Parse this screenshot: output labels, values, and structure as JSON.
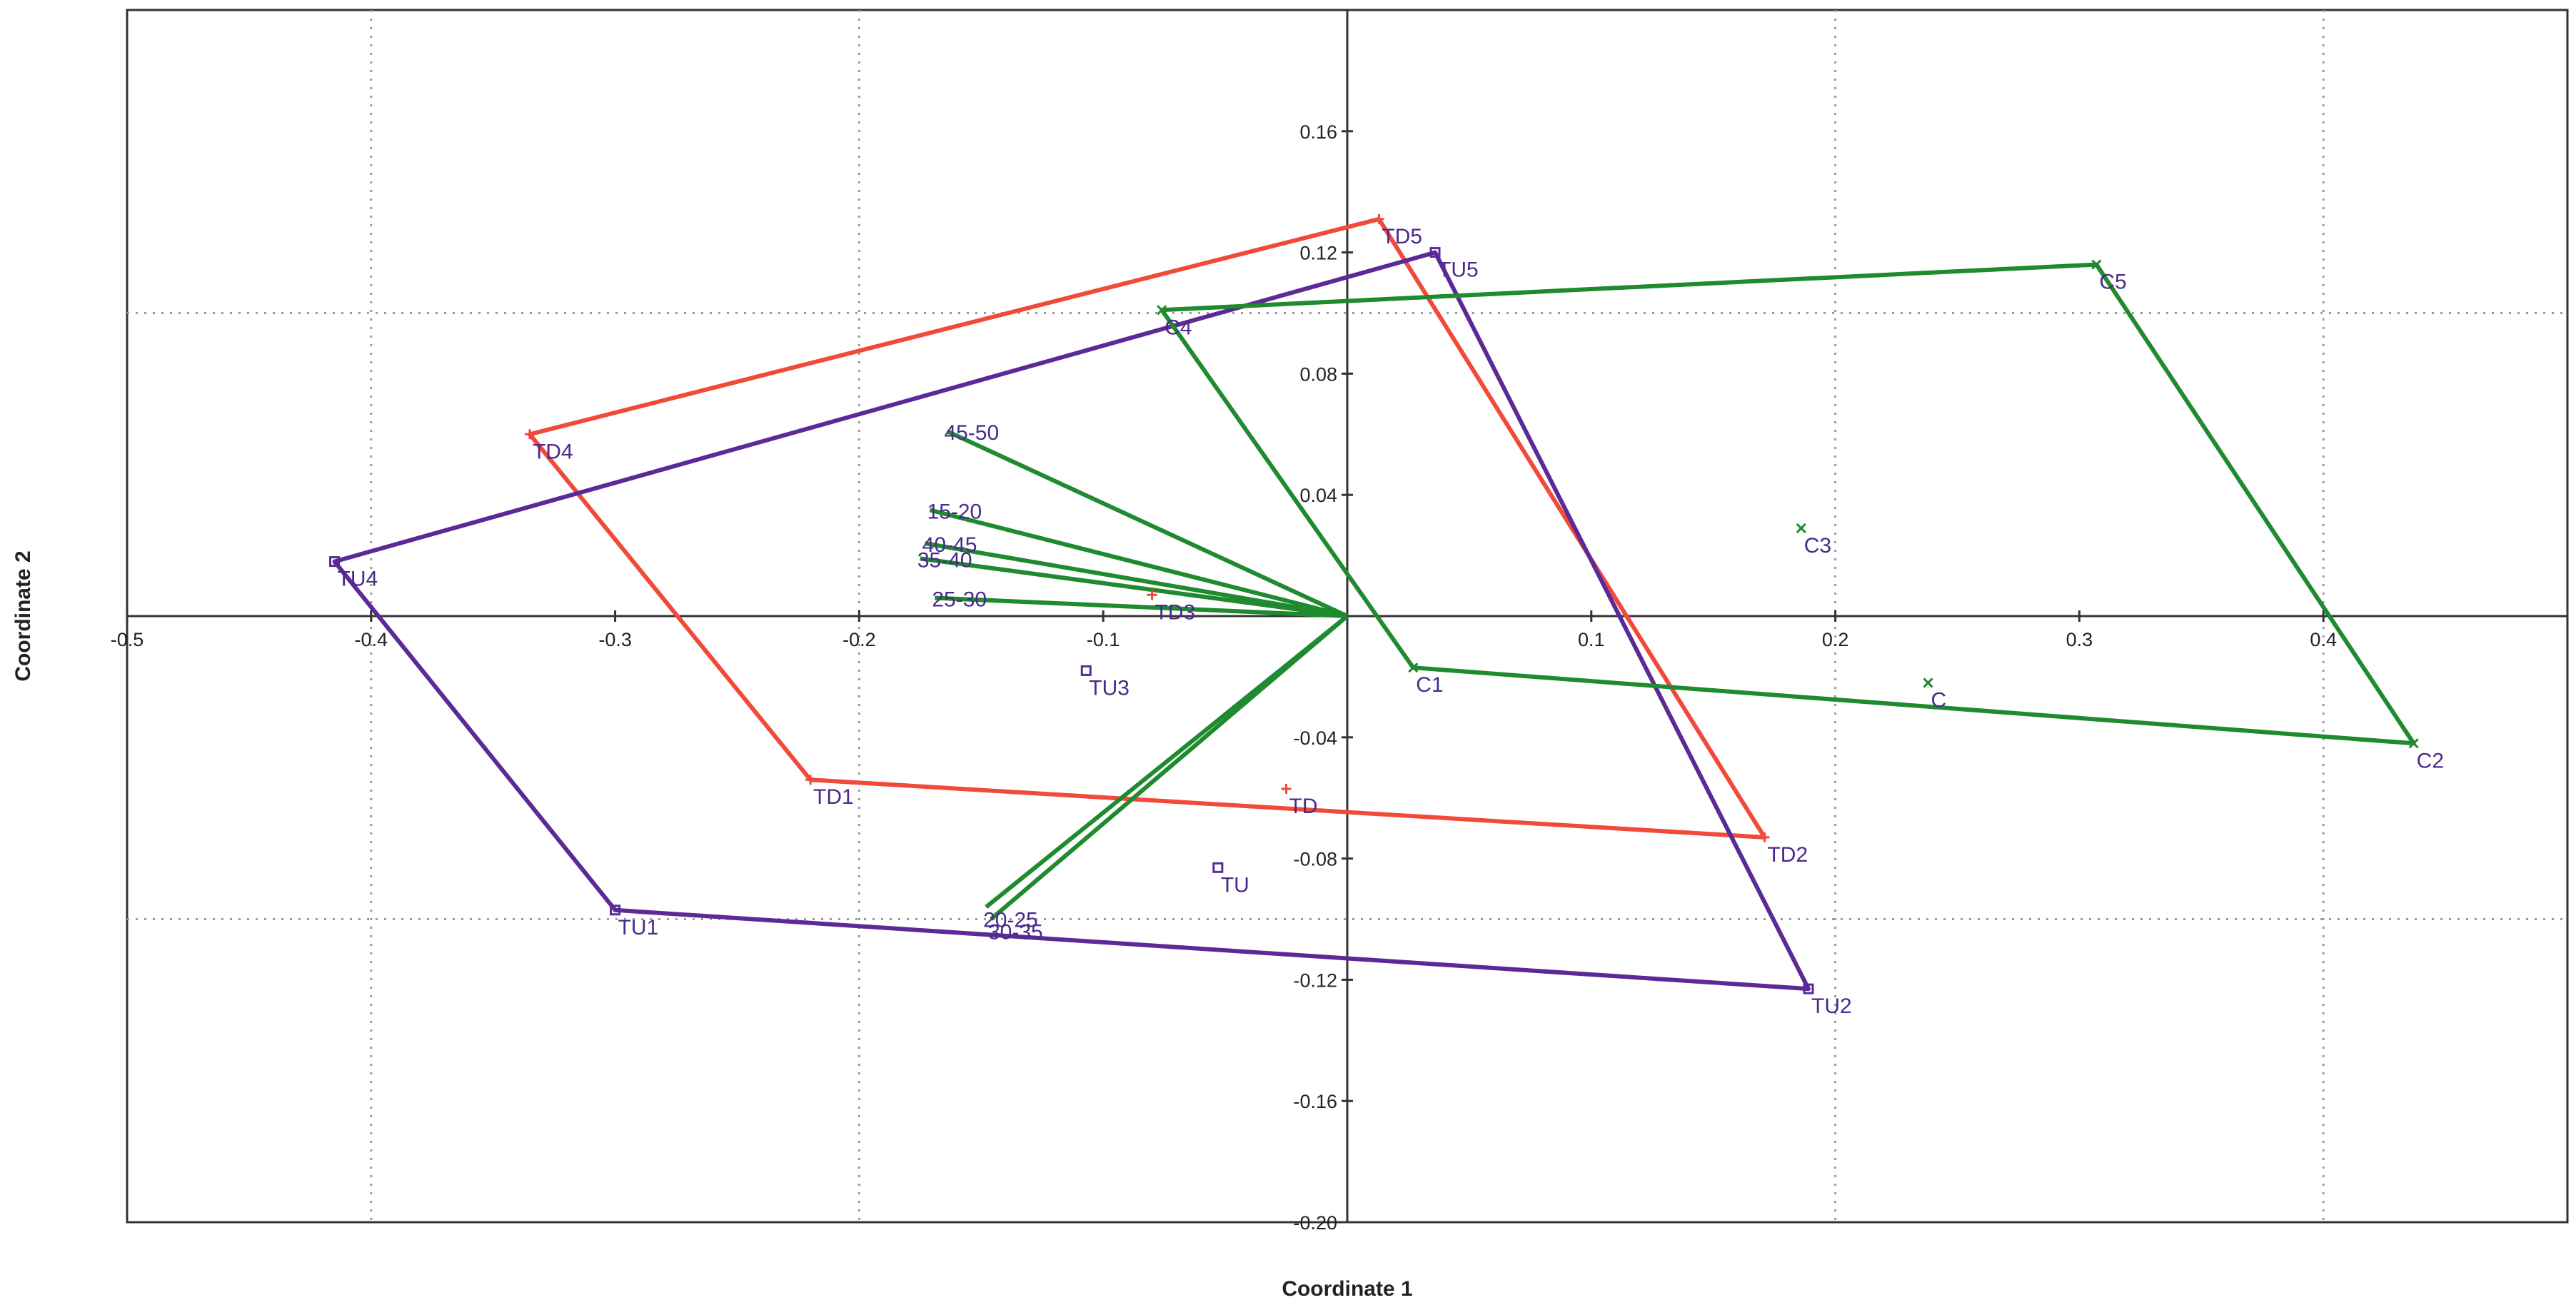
{
  "colors": {
    "red": "#f24a3a",
    "purple": "#5b2a96",
    "green": "#1f8a2e",
    "label": "#4a2a8a",
    "grid": "#9a9a9a",
    "axis": "#333333"
  },
  "chart_data": {
    "type": "scatter",
    "title": "",
    "xlabel": "Coordinate 1",
    "ylabel": "Coordinate 2",
    "xlim": [
      -0.5,
      0.5
    ],
    "ylim": [
      -0.2,
      0.2
    ],
    "x_ticks": [
      -0.5,
      -0.4,
      -0.3,
      -0.2,
      -0.1,
      0.1,
      0.2,
      0.3,
      0.4
    ],
    "x_tick_labels": [
      "-0.5",
      "-0.4",
      "-0.3",
      "-0.2",
      "-0.1",
      "0.1",
      "0.2",
      "0.3",
      "0.4"
    ],
    "y_ticks": [
      -0.2,
      -0.16,
      -0.12,
      -0.08,
      -0.04,
      0.04,
      0.08,
      0.12,
      0.16
    ],
    "y_tick_labels": [
      "-0.20",
      "-0.16",
      "-0.12",
      "-0.08",
      "-0.04",
      "0.04",
      "0.08",
      "0.12",
      "0.16"
    ],
    "grid_x": [
      -0.4,
      -0.2,
      0.2,
      0.4
    ],
    "grid_y": [
      -0.1,
      0.1
    ],
    "hulls": [
      {
        "color": "red",
        "vertices": [
          "TD4",
          "TD5",
          "TD2",
          "TD1"
        ]
      },
      {
        "color": "purple",
        "vertices": [
          "TU4",
          "TU5",
          "TU2",
          "TU1"
        ]
      },
      {
        "color": "green",
        "vertices": [
          "C4",
          "C5",
          "C2",
          "C1"
        ]
      }
    ],
    "points": [
      {
        "label": "TD1",
        "x": -0.22,
        "y": -0.054,
        "color": "red",
        "marker": "plus"
      },
      {
        "label": "TD2",
        "x": 0.171,
        "y": -0.073,
        "color": "red",
        "marker": "plus"
      },
      {
        "label": "TD3",
        "x": -0.08,
        "y": 0.007,
        "color": "red",
        "marker": "plus"
      },
      {
        "label": "TD4",
        "x": -0.335,
        "y": 0.06,
        "color": "red",
        "marker": "plus"
      },
      {
        "label": "TD5",
        "x": 0.013,
        "y": 0.131,
        "color": "red",
        "marker": "plus"
      },
      {
        "label": "TD",
        "x": -0.025,
        "y": -0.057,
        "color": "red",
        "marker": "plus"
      },
      {
        "label": "TU1",
        "x": -0.3,
        "y": -0.097,
        "color": "purple",
        "marker": "square"
      },
      {
        "label": "TU2",
        "x": 0.189,
        "y": -0.123,
        "color": "purple",
        "marker": "square"
      },
      {
        "label": "TU3",
        "x": -0.107,
        "y": -0.018,
        "color": "purple",
        "marker": "square"
      },
      {
        "label": "TU4",
        "x": -0.415,
        "y": 0.018,
        "color": "purple",
        "marker": "square"
      },
      {
        "label": "TU5",
        "x": 0.036,
        "y": 0.12,
        "color": "purple",
        "marker": "square"
      },
      {
        "label": "TU",
        "x": -0.053,
        "y": -0.083,
        "color": "purple",
        "marker": "square"
      },
      {
        "label": "C1",
        "x": 0.027,
        "y": -0.017,
        "color": "green",
        "marker": "x"
      },
      {
        "label": "C2",
        "x": 0.437,
        "y": -0.042,
        "color": "green",
        "marker": "x"
      },
      {
        "label": "C3",
        "x": 0.186,
        "y": 0.029,
        "color": "green",
        "marker": "x"
      },
      {
        "label": "C4",
        "x": -0.076,
        "y": 0.101,
        "color": "green",
        "marker": "x"
      },
      {
        "label": "C5",
        "x": 0.307,
        "y": 0.116,
        "color": "green",
        "marker": "x"
      },
      {
        "label": "C",
        "x": 0.238,
        "y": -0.022,
        "color": "green",
        "marker": "x"
      }
    ],
    "vectors": [
      {
        "label": "45-50",
        "x": -0.164,
        "y": 0.061
      },
      {
        "label": "15-20",
        "x": -0.171,
        "y": 0.035
      },
      {
        "label": "40-45",
        "x": -0.173,
        "y": 0.024
      },
      {
        "label": "35-40",
        "x": -0.175,
        "y": 0.019
      },
      {
        "label": "25-30",
        "x": -0.169,
        "y": 0.006
      },
      {
        "label": "20-25",
        "x": -0.148,
        "y": -0.096
      },
      {
        "label": "30-35",
        "x": -0.146,
        "y": -0.1
      }
    ]
  }
}
